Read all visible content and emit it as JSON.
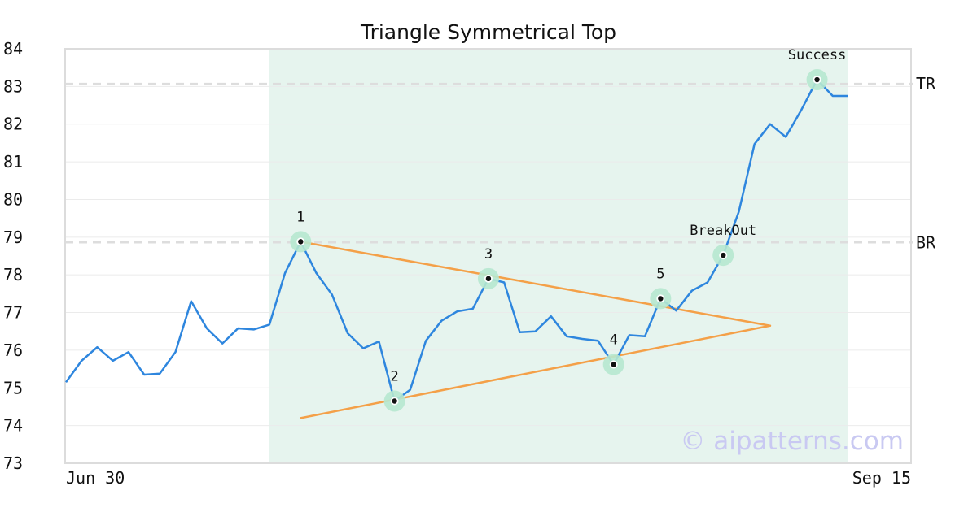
{
  "chart_data": {
    "type": "line",
    "title": "Triangle Symmetrical Top",
    "xlabel": "",
    "ylabel": "",
    "ylim": [
      73,
      84
    ],
    "yticks": [
      73,
      74,
      75,
      76,
      77,
      78,
      79,
      80,
      81,
      82,
      83,
      84
    ],
    "x_tick_labels": [
      "Jun 30",
      "Sep 15"
    ],
    "grid": true,
    "watermark": "© aipatterns.com",
    "colors": {
      "price": "#2e86de",
      "trendline": "#f4a048",
      "highlight": "#e6f4ee",
      "marker_halo": "#b6e8cf",
      "reference_line": "#dddddd"
    },
    "highlight_range": [
      13,
      50
    ],
    "series": [
      {
        "values": [
          75.15,
          75.72,
          76.08,
          75.72,
          75.95,
          75.35,
          75.38,
          75.95,
          77.3,
          76.58,
          76.18,
          76.58,
          76.55,
          76.68,
          78.05,
          78.88,
          78.05,
          77.48,
          76.45,
          76.05,
          76.23,
          74.65,
          74.95,
          76.25,
          76.78,
          77.03,
          77.1,
          77.9,
          77.8,
          76.48,
          76.5,
          76.9,
          76.37,
          76.3,
          76.25,
          75.62,
          76.4,
          76.37,
          77.37,
          77.05,
          77.58,
          77.8,
          78.52,
          79.68,
          81.47,
          82.0,
          81.66,
          82.38,
          83.18,
          82.75,
          82.75
        ]
      }
    ],
    "reference_lines": [
      {
        "label": "TR",
        "y": 83.07
      },
      {
        "label": "BR",
        "y": 78.86
      }
    ],
    "trendlines": [
      {
        "from": [
          15,
          78.88
        ],
        "to": [
          45,
          76.65
        ]
      },
      {
        "from": [
          15,
          74.2
        ],
        "to": [
          45,
          76.65
        ]
      }
    ],
    "points": [
      {
        "label": "1",
        "x": 15,
        "y": 78.88
      },
      {
        "label": "2",
        "x": 21,
        "y": 74.65
      },
      {
        "label": "3",
        "x": 27,
        "y": 77.9
      },
      {
        "label": "4",
        "x": 35,
        "y": 75.62
      },
      {
        "label": "5",
        "x": 38,
        "y": 77.37
      },
      {
        "label": "BreakOut",
        "x": 42,
        "y": 78.52
      },
      {
        "label": "Success",
        "x": 48,
        "y": 83.18
      }
    ]
  }
}
